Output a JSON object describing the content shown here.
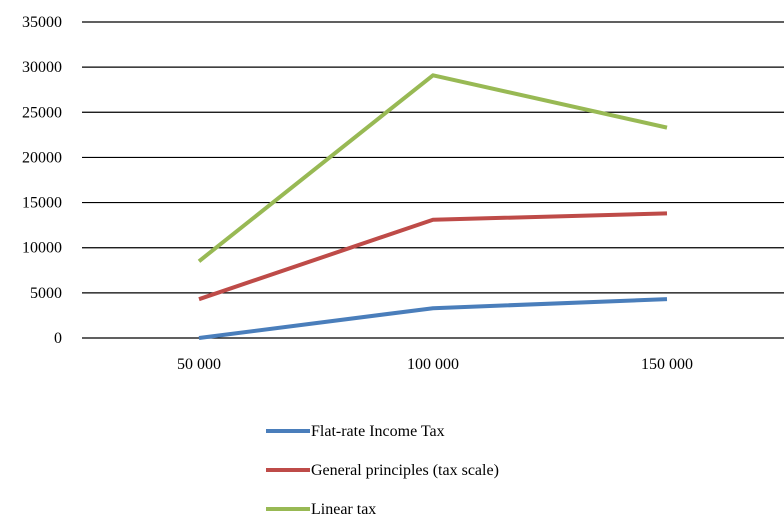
{
  "chart_data": {
    "type": "line",
    "categories": [
      "50 000",
      "100 000",
      "150 000"
    ],
    "series": [
      {
        "name": "Flat-rate Income Tax",
        "values": [
          0,
          3300,
          4300
        ],
        "color": "#4a7ebb"
      },
      {
        "name": "General principles (tax scale)",
        "values": [
          4300,
          13100,
          13800
        ],
        "color": "#be4b48"
      },
      {
        "name": "Linear tax",
        "values": [
          8500,
          29100,
          23300
        ],
        "color": "#98b954"
      }
    ],
    "ylim": [
      0,
      35000
    ],
    "yticks": [
      "0",
      "5000",
      "10000",
      "15000",
      "20000",
      "25000",
      "30000",
      "35000"
    ],
    "title": "",
    "xlabel": "",
    "ylabel": "",
    "grid": true,
    "legend_position": "bottom"
  }
}
